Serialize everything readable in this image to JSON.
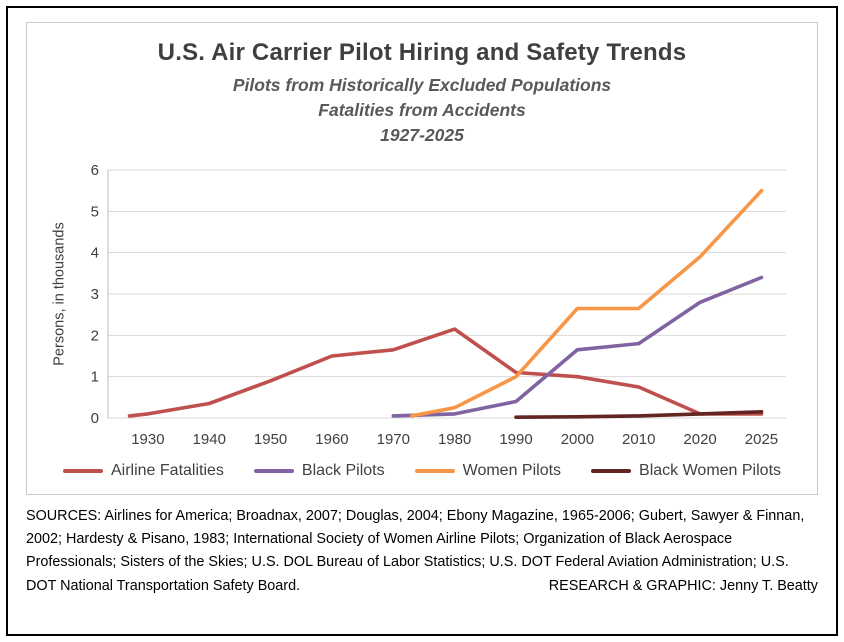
{
  "chart_data": {
    "type": "line",
    "title": "U.S. Air Carrier Pilot Hiring and Safety Trends",
    "subtitle": [
      "Pilots from Historically Excluded Populations",
      "Fatalities from Accidents",
      "1927-2025"
    ],
    "xlabel": "",
    "ylabel": "Persons, in thousands",
    "ylim": [
      0,
      6
    ],
    "yticks": [
      0,
      1,
      2,
      3,
      4,
      5,
      6
    ],
    "xticks": [
      1930,
      1940,
      1950,
      1960,
      1970,
      1980,
      1990,
      2000,
      2010,
      2020,
      2025
    ],
    "grid": "horizontal",
    "legend_position": "bottom",
    "gridline_color": "#d9d9d9",
    "axis_color": "#bfbfbf",
    "series": [
      {
        "name": "Airline Fatalities",
        "color": "#C0504D",
        "points": [
          [
            1927,
            0.05
          ],
          [
            1930,
            0.1
          ],
          [
            1940,
            0.35
          ],
          [
            1950,
            0.9
          ],
          [
            1960,
            1.5
          ],
          [
            1970,
            1.65
          ],
          [
            1980,
            2.15
          ],
          [
            1990,
            1.1
          ],
          [
            2000,
            1.0
          ],
          [
            2010,
            0.75
          ],
          [
            2020,
            0.1
          ],
          [
            2025,
            0.1
          ]
        ]
      },
      {
        "name": "Black Pilots",
        "color": "#8064A2",
        "points": [
          [
            1970,
            0.05
          ],
          [
            1980,
            0.1
          ],
          [
            1990,
            0.4
          ],
          [
            2000,
            1.65
          ],
          [
            2010,
            1.8
          ],
          [
            2020,
            2.8
          ],
          [
            2025,
            3.4
          ]
        ]
      },
      {
        "name": "Women Pilots",
        "color": "#F79646",
        "points": [
          [
            1973,
            0.05
          ],
          [
            1980,
            0.25
          ],
          [
            1990,
            1.0
          ],
          [
            2000,
            2.65
          ],
          [
            2010,
            2.65
          ],
          [
            2020,
            3.9
          ],
          [
            2025,
            5.5
          ]
        ]
      },
      {
        "name": "Black Women Pilots",
        "color": "#632523",
        "points": [
          [
            1990,
            0.02
          ],
          [
            2000,
            0.03
          ],
          [
            2010,
            0.05
          ],
          [
            2020,
            0.1
          ],
          [
            2025,
            0.15
          ]
        ]
      }
    ]
  },
  "footer": {
    "sources_text": "SOURCES: Airlines for America; Broadnax, 2007; Douglas, 2004; Ebony Magazine, 1965-2006; Gubert, Sawyer & Finnan, 2002; Hardesty & Pisano, 1983; International Society of Women Airline Pilots; Organization of Black Aerospace Professionals; Sisters of the Skies; U.S. DOL Bureau of Labor Statistics; U.S. DOT Federal Aviation Administration; U.S. DOT National Transportation Safety Board.",
    "credit": "RESEARCH & GRAPHIC: Jenny T. Beatty"
  }
}
